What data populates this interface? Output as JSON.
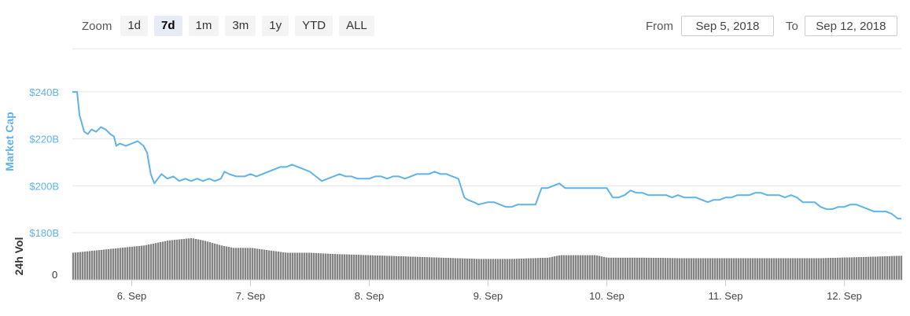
{
  "zoom": {
    "label": "Zoom",
    "buttons": [
      {
        "label": "1d",
        "active": false
      },
      {
        "label": "7d",
        "active": true
      },
      {
        "label": "1m",
        "active": false
      },
      {
        "label": "3m",
        "active": false
      },
      {
        "label": "1y",
        "active": false
      },
      {
        "label": "YTD",
        "active": false
      },
      {
        "label": "ALL",
        "active": false
      }
    ]
  },
  "range": {
    "from_label": "From",
    "from_value": "Sep 5, 2018",
    "to_label": "To",
    "to_value": "Sep 12, 2018"
  },
  "colors": {
    "line": "#5fb3e6",
    "axis_text_blue": "#5fb3e6",
    "volume_bar": "#8a8a8a",
    "grid": "#e6e6e6"
  },
  "chart_data": {
    "type": "line",
    "title": "",
    "ylabel": "Market Cap",
    "volume_label": "24h Vol",
    "ylim": [
      180,
      247
    ],
    "yticks": [
      {
        "value": 180,
        "label": "$180B"
      },
      {
        "value": 200,
        "label": "$200B"
      },
      {
        "value": 220,
        "label": "$220B"
      },
      {
        "value": 240,
        "label": "$240B"
      }
    ],
    "xlim": [
      5.5,
      12.48
    ],
    "xticks": [
      {
        "value": 6,
        "label": "6. Sep"
      },
      {
        "value": 7,
        "label": "7. Sep"
      },
      {
        "value": 8,
        "label": "8. Sep"
      },
      {
        "value": 9,
        "label": "9. Sep"
      },
      {
        "value": 10,
        "label": "10. Sep"
      },
      {
        "value": 11,
        "label": "11. Sep"
      },
      {
        "value": 12,
        "label": "12. Sep"
      }
    ],
    "series": [
      {
        "values": [
          [
            5.5,
            240
          ],
          [
            5.54,
            240
          ],
          [
            5.56,
            230
          ],
          [
            5.6,
            223
          ],
          [
            5.63,
            222
          ],
          [
            5.66,
            224
          ],
          [
            5.7,
            223
          ],
          [
            5.74,
            225
          ],
          [
            5.78,
            224
          ],
          [
            5.82,
            222
          ],
          [
            5.85,
            221
          ],
          [
            5.87,
            217
          ],
          [
            5.9,
            218
          ],
          [
            5.95,
            217
          ],
          [
            6.0,
            218
          ],
          [
            6.05,
            219
          ],
          [
            6.1,
            217
          ],
          [
            6.13,
            214
          ],
          [
            6.16,
            205
          ],
          [
            6.19,
            201
          ],
          [
            6.22,
            203
          ],
          [
            6.25,
            205
          ],
          [
            6.3,
            203
          ],
          [
            6.35,
            204
          ],
          [
            6.4,
            202
          ],
          [
            6.45,
            203
          ],
          [
            6.5,
            202
          ],
          [
            6.55,
            203
          ],
          [
            6.6,
            202
          ],
          [
            6.65,
            203
          ],
          [
            6.7,
            202
          ],
          [
            6.75,
            203
          ],
          [
            6.78,
            206
          ],
          [
            6.82,
            205
          ],
          [
            6.88,
            204
          ],
          [
            6.95,
            204
          ],
          [
            7.0,
            205
          ],
          [
            7.05,
            204
          ],
          [
            7.1,
            205
          ],
          [
            7.15,
            206
          ],
          [
            7.2,
            207
          ],
          [
            7.25,
            208
          ],
          [
            7.3,
            208
          ],
          [
            7.35,
            209
          ],
          [
            7.4,
            208
          ],
          [
            7.45,
            207
          ],
          [
            7.5,
            206
          ],
          [
            7.55,
            204
          ],
          [
            7.6,
            202
          ],
          [
            7.65,
            203
          ],
          [
            7.7,
            204
          ],
          [
            7.75,
            205
          ],
          [
            7.8,
            204
          ],
          [
            7.85,
            204
          ],
          [
            7.9,
            203
          ],
          [
            7.95,
            203
          ],
          [
            8.0,
            203
          ],
          [
            8.05,
            204
          ],
          [
            8.1,
            204
          ],
          [
            8.15,
            203
          ],
          [
            8.2,
            204
          ],
          [
            8.25,
            204
          ],
          [
            8.3,
            203
          ],
          [
            8.35,
            204
          ],
          [
            8.4,
            205
          ],
          [
            8.45,
            205
          ],
          [
            8.5,
            205
          ],
          [
            8.55,
            206
          ],
          [
            8.6,
            205
          ],
          [
            8.65,
            205
          ],
          [
            8.7,
            204
          ],
          [
            8.75,
            203
          ],
          [
            8.8,
            195
          ],
          [
            8.83,
            194
          ],
          [
            8.88,
            193
          ],
          [
            8.92,
            192
          ],
          [
            9.0,
            193
          ],
          [
            9.05,
            193
          ],
          [
            9.1,
            192
          ],
          [
            9.15,
            191
          ],
          [
            9.2,
            191
          ],
          [
            9.25,
            192
          ],
          [
            9.3,
            192
          ],
          [
            9.35,
            192
          ],
          [
            9.4,
            192
          ],
          [
            9.45,
            199
          ],
          [
            9.5,
            199
          ],
          [
            9.55,
            200
          ],
          [
            9.6,
            201
          ],
          [
            9.65,
            199
          ],
          [
            9.7,
            199
          ],
          [
            9.75,
            199
          ],
          [
            9.8,
            199
          ],
          [
            9.85,
            199
          ],
          [
            9.9,
            199
          ],
          [
            9.95,
            199
          ],
          [
            10.0,
            199
          ],
          [
            10.05,
            195
          ],
          [
            10.1,
            195
          ],
          [
            10.15,
            196
          ],
          [
            10.2,
            198
          ],
          [
            10.25,
            197
          ],
          [
            10.3,
            197
          ],
          [
            10.35,
            196
          ],
          [
            10.4,
            196
          ],
          [
            10.45,
            196
          ],
          [
            10.5,
            196
          ],
          [
            10.55,
            195
          ],
          [
            10.6,
            196
          ],
          [
            10.65,
            195
          ],
          [
            10.7,
            195
          ],
          [
            10.75,
            195
          ],
          [
            10.8,
            194
          ],
          [
            10.85,
            193
          ],
          [
            10.9,
            194
          ],
          [
            10.95,
            194
          ],
          [
            11.0,
            195
          ],
          [
            11.05,
            195
          ],
          [
            11.1,
            196
          ],
          [
            11.15,
            196
          ],
          [
            11.2,
            196
          ],
          [
            11.25,
            197
          ],
          [
            11.3,
            197
          ],
          [
            11.35,
            196
          ],
          [
            11.4,
            196
          ],
          [
            11.45,
            196
          ],
          [
            11.5,
            195
          ],
          [
            11.55,
            196
          ],
          [
            11.6,
            195
          ],
          [
            11.65,
            193
          ],
          [
            11.7,
            193
          ],
          [
            11.75,
            193
          ],
          [
            11.8,
            191
          ],
          [
            11.85,
            190
          ],
          [
            11.9,
            190
          ],
          [
            11.95,
            191
          ],
          [
            12.0,
            191
          ],
          [
            12.05,
            192
          ],
          [
            12.1,
            192
          ],
          [
            12.15,
            191
          ],
          [
            12.2,
            190
          ],
          [
            12.25,
            189
          ],
          [
            12.3,
            189
          ],
          [
            12.35,
            189
          ],
          [
            12.4,
            188
          ],
          [
            12.45,
            186
          ],
          [
            12.48,
            186
          ]
        ]
      }
    ],
    "volume": [
      [
        5.5,
        11
      ],
      [
        5.7,
        12
      ],
      [
        5.9,
        13
      ],
      [
        6.1,
        14
      ],
      [
        6.2,
        15
      ],
      [
        6.3,
        16
      ],
      [
        6.5,
        17
      ],
      [
        6.6,
        16
      ],
      [
        6.75,
        14
      ],
      [
        6.85,
        13
      ],
      [
        7.0,
        13
      ],
      [
        7.15,
        12
      ],
      [
        7.3,
        11
      ],
      [
        7.5,
        11
      ],
      [
        7.7,
        10.5
      ],
      [
        8.0,
        10
      ],
      [
        8.3,
        9.5
      ],
      [
        8.6,
        9
      ],
      [
        8.9,
        8.5
      ],
      [
        9.2,
        8.5
      ],
      [
        9.5,
        9
      ],
      [
        9.6,
        10
      ],
      [
        9.9,
        10
      ],
      [
        10.0,
        9
      ],
      [
        10.3,
        9
      ],
      [
        10.6,
        8.8
      ],
      [
        10.9,
        8.8
      ],
      [
        11.2,
        8.8
      ],
      [
        11.5,
        8.8
      ],
      [
        11.8,
        8.8
      ],
      [
        12.1,
        9.2
      ],
      [
        12.3,
        9.5
      ],
      [
        12.48,
        9.8
      ]
    ],
    "volume_ylim": [
      0,
      18
    ],
    "volume_ytick_label": "0",
    "grid": true,
    "legend": "none"
  }
}
